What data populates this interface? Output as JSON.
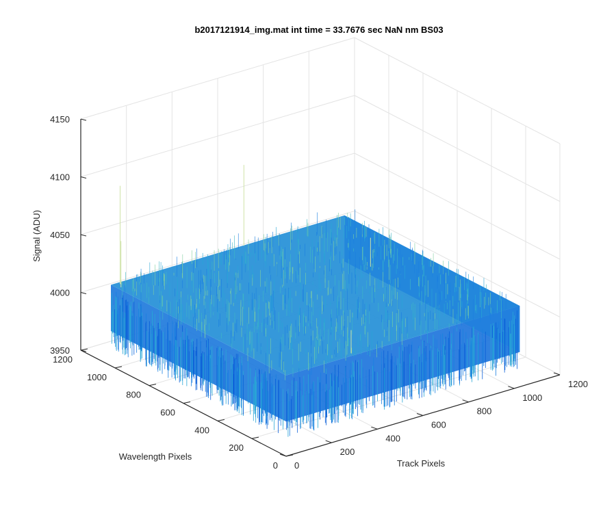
{
  "window": {
    "title": "b2017121914_img.mat int time = 33.7676 sec  NaN nm BS03"
  },
  "chart_data": {
    "type": "surface",
    "title": "b2017121914_img.mat int time = 33.7676 sec  NaN nm BS03",
    "xlabel": "Track Pixels",
    "ylabel": "Wavelength Pixels",
    "zlabel": "Signal (ADU)",
    "xlim": [
      0,
      1200
    ],
    "ylim": [
      0,
      1200
    ],
    "zlim": [
      3950,
      4150
    ],
    "x_ticks": [
      0,
      200,
      400,
      600,
      800,
      1000,
      1200
    ],
    "y_ticks": [
      0,
      200,
      400,
      600,
      800,
      1000,
      1200
    ],
    "z_ticks": [
      3950,
      4000,
      4050,
      4100,
      4150
    ],
    "x_tick_labels": [
      "0",
      "200",
      "400",
      "600",
      "800",
      "1000",
      "1200"
    ],
    "y_tick_labels": [
      "0",
      "200",
      "400",
      "600",
      "800",
      "1000",
      "1200"
    ],
    "z_tick_labels": [
      "3950",
      "4000",
      "4050",
      "4100",
      "4150"
    ],
    "grid": true,
    "surface": {
      "x_range": [
        0,
        1024
      ],
      "y_range": [
        0,
        1024
      ],
      "mean_signal": 4000,
      "noise_band": [
        3980,
        4020
      ],
      "spike_max": 4110,
      "colormap": "parula",
      "colors": [
        "#0a5fd8",
        "#1b7fe0",
        "#28a6d6",
        "#3fb8c4",
        "#7fd0a0",
        "#f5e24a"
      ]
    }
  }
}
